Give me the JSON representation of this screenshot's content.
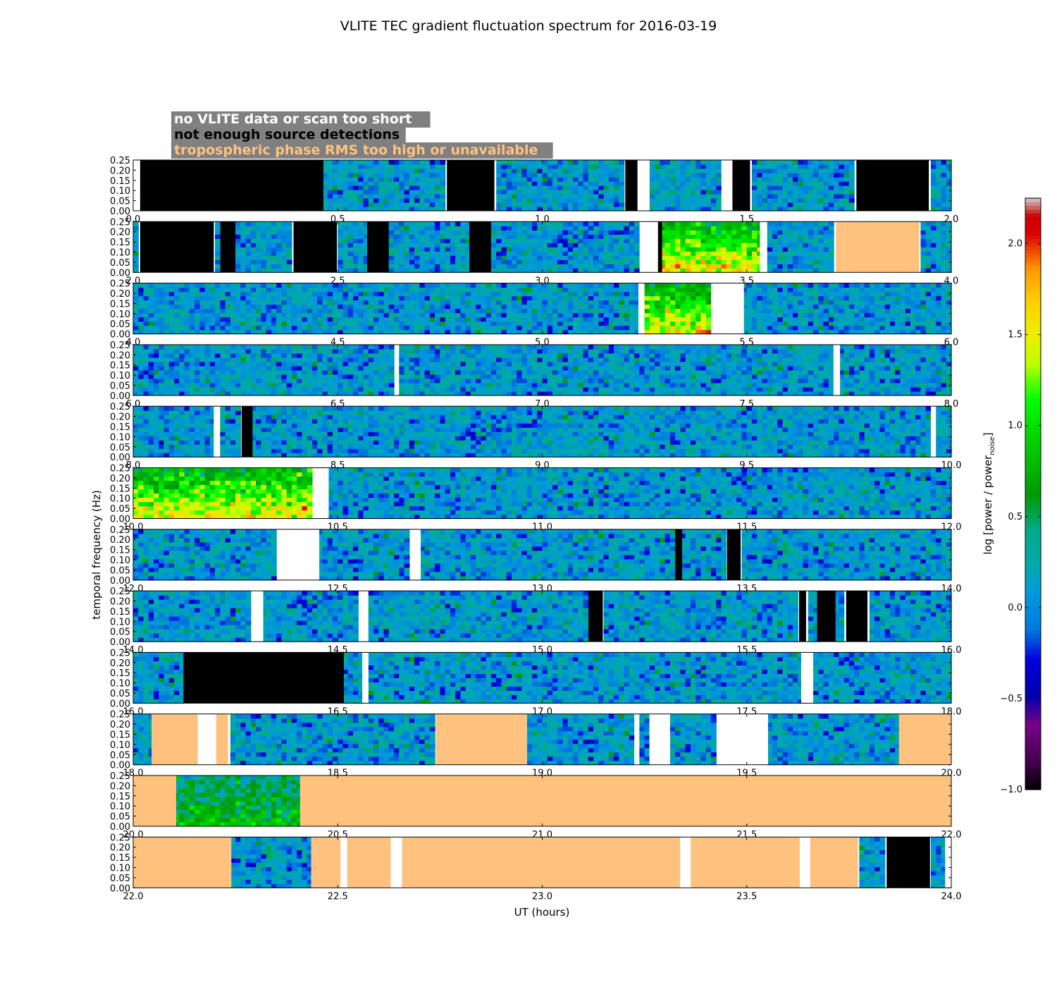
{
  "chart_data": {
    "type": "heatmap",
    "title": "VLITE TEC gradient fluctuation spectrum for 2016-03-19",
    "xlabel": "UT (hours)",
    "ylabel": "temporal frequency (Hz)",
    "colorbar_label": "log [power / power",
    "colorbar_label_sub": "noise",
    "colorbar_label_end": "]",
    "colorbar_range": [
      -1.0,
      2.25
    ],
    "colorbar_ticks": [
      "2.0",
      "1.5",
      "1.0",
      "0.5",
      "0.0",
      "−0.5",
      "−1.0"
    ],
    "colormap": "nipy_spectral",
    "y_ticks": [
      "0.00",
      "0.05",
      "0.10",
      "0.15",
      "0.20",
      "0.25"
    ],
    "ylim": [
      0,
      0.25
    ],
    "legend": {
      "placement": "top-left",
      "background": "#808080",
      "entries": [
        {
          "label": "no VLITE data or scan too short",
          "color": "#ffffff"
        },
        {
          "label": "not enough source detections",
          "color": "#000000"
        },
        {
          "label": "tropospheric phase RMS too high or unavailable",
          "color": "#ffc27e"
        }
      ]
    },
    "masks": {
      "W": "#ffffff",
      "B": "#000000",
      "O": "#ffc27e"
    },
    "panels": [
      {
        "xlim": [
          0,
          2
        ],
        "x_ticks": [
          "0.0",
          "0.5",
          "1.0",
          "1.5",
          "2.0"
        ],
        "segments": [
          [
            0.0,
            0.017,
            "W"
          ],
          [
            0.017,
            0.465,
            "B"
          ],
          [
            0.465,
            0.767,
            "D"
          ],
          [
            0.767,
            0.883,
            "B"
          ],
          [
            0.883,
            1.203,
            "D"
          ],
          [
            1.203,
            1.233,
            "B"
          ],
          [
            1.233,
            1.26,
            "W"
          ],
          [
            1.26,
            1.438,
            "D"
          ],
          [
            1.438,
            1.465,
            "W"
          ],
          [
            1.465,
            1.508,
            "B"
          ],
          [
            1.508,
            1.768,
            "D"
          ],
          [
            1.768,
            1.945,
            "B"
          ],
          [
            1.945,
            2.0,
            "D"
          ]
        ]
      },
      {
        "xlim": [
          2,
          4
        ],
        "x_ticks": [
          "2.0",
          "2.5",
          "3.0",
          "3.5",
          "4.0"
        ],
        "segments": [
          [
            2.0,
            2.017,
            "D"
          ],
          [
            2.017,
            2.197,
            "B"
          ],
          [
            2.197,
            2.213,
            "D"
          ],
          [
            2.213,
            2.25,
            "B"
          ],
          [
            2.25,
            2.392,
            "D"
          ],
          [
            2.392,
            2.498,
            "B"
          ],
          [
            2.498,
            2.572,
            "D"
          ],
          [
            2.572,
            2.625,
            "B"
          ],
          [
            2.625,
            2.822,
            "D"
          ],
          [
            2.822,
            2.875,
            "B"
          ],
          [
            2.875,
            3.238,
            "D"
          ],
          [
            3.238,
            3.283,
            "W"
          ],
          [
            3.283,
            3.293,
            "B"
          ],
          [
            3.293,
            3.532,
            "D",
            "hot"
          ],
          [
            3.532,
            3.548,
            "W"
          ],
          [
            3.548,
            3.718,
            "D"
          ],
          [
            3.718,
            3.922,
            "O"
          ],
          [
            3.922,
            4.0,
            "D"
          ]
        ]
      },
      {
        "xlim": [
          4,
          6
        ],
        "x_ticks": [
          "4.0",
          "4.5",
          "5.0",
          "5.5",
          "6.0"
        ],
        "segments": [
          [
            4.0,
            5.235,
            "D"
          ],
          [
            5.235,
            5.245,
            "W"
          ],
          [
            5.245,
            5.413,
            "D",
            "hot"
          ],
          [
            5.413,
            5.493,
            "W"
          ],
          [
            5.493,
            6.0,
            "D"
          ]
        ]
      },
      {
        "xlim": [
          6,
          8
        ],
        "x_ticks": [
          "6.0",
          "6.5",
          "7.0",
          "7.5",
          "8.0"
        ],
        "segments": [
          [
            6.0,
            6.643,
            "D"
          ],
          [
            6.643,
            6.648,
            "W"
          ],
          [
            6.648,
            7.712,
            "D"
          ],
          [
            7.712,
            7.728,
            "W"
          ],
          [
            7.728,
            8.0,
            "D"
          ]
        ]
      },
      {
        "xlim": [
          8,
          10
        ],
        "x_ticks": [
          "8.0",
          "8.5",
          "9.0",
          "9.5",
          "10.0"
        ],
        "segments": [
          [
            8.0,
            8.197,
            "D"
          ],
          [
            8.197,
            8.212,
            "W"
          ],
          [
            8.212,
            8.265,
            "D"
          ],
          [
            8.265,
            8.292,
            "B"
          ],
          [
            8.292,
            9.95,
            "D"
          ],
          [
            9.95,
            9.958,
            "W"
          ],
          [
            9.958,
            10.0,
            "D"
          ]
        ]
      },
      {
        "xlim": [
          10,
          12
        ],
        "x_ticks": [
          "10.0",
          "10.5",
          "11.0",
          "11.5",
          "12.0"
        ],
        "segments": [
          [
            10.0,
            10.443,
            "D",
            "hot"
          ],
          [
            10.443,
            10.478,
            "W"
          ],
          [
            10.478,
            12.0,
            "D"
          ]
        ]
      },
      {
        "xlim": [
          12,
          14
        ],
        "x_ticks": [
          "12.0",
          "12.5",
          "13.0",
          "13.5",
          "14.0"
        ],
        "segments": [
          [
            12.0,
            12.355,
            "D"
          ],
          [
            12.355,
            12.455,
            "W"
          ],
          [
            12.455,
            12.678,
            "D"
          ],
          [
            12.678,
            12.703,
            "W"
          ],
          [
            12.703,
            13.325,
            "D"
          ],
          [
            13.325,
            13.342,
            "B"
          ],
          [
            13.342,
            13.452,
            "D"
          ],
          [
            13.452,
            13.485,
            "B"
          ],
          [
            13.485,
            14.0,
            "D"
          ]
        ]
      },
      {
        "xlim": [
          14,
          16
        ],
        "x_ticks": [
          "14.0",
          "14.5",
          "15.0",
          "15.5",
          "16.0"
        ],
        "segments": [
          [
            14.0,
            14.293,
            "D"
          ],
          [
            14.293,
            14.318,
            "W"
          ],
          [
            14.318,
            14.555,
            "D"
          ],
          [
            14.555,
            14.572,
            "W"
          ],
          [
            14.572,
            15.113,
            "D"
          ],
          [
            15.113,
            15.148,
            "B"
          ],
          [
            15.148,
            15.628,
            "D"
          ],
          [
            15.628,
            15.645,
            "B"
          ],
          [
            15.645,
            15.672,
            "D"
          ],
          [
            15.672,
            15.717,
            "B"
          ],
          [
            15.717,
            15.743,
            "D"
          ],
          [
            15.743,
            15.795,
            "B"
          ],
          [
            15.795,
            16.0,
            "D"
          ]
        ]
      },
      {
        "xlim": [
          16,
          18
        ],
        "x_ticks": [
          "16.0",
          "16.5",
          "17.0",
          "17.5",
          "18.0"
        ],
        "segments": [
          [
            16.0,
            16.123,
            "D"
          ],
          [
            16.123,
            16.515,
            "B"
          ],
          [
            16.515,
            16.56,
            "D"
          ],
          [
            16.56,
            16.575,
            "W"
          ],
          [
            16.575,
            17.633,
            "D"
          ],
          [
            17.633,
            17.658,
            "W"
          ],
          [
            17.658,
            18.0,
            "D"
          ]
        ]
      },
      {
        "xlim": [
          18,
          20
        ],
        "x_ticks": [
          "18.0",
          "18.5",
          "19.0",
          "19.5",
          "20.0"
        ],
        "segments": [
          [
            18.0,
            18.045,
            "D"
          ],
          [
            18.045,
            18.158,
            "O"
          ],
          [
            18.158,
            18.203,
            "W"
          ],
          [
            18.203,
            18.232,
            "O"
          ],
          [
            18.232,
            18.74,
            "D"
          ],
          [
            18.74,
            18.963,
            "O"
          ],
          [
            18.963,
            19.225,
            "D"
          ],
          [
            19.225,
            19.232,
            "W"
          ],
          [
            19.232,
            19.262,
            "D"
          ],
          [
            19.262,
            19.312,
            "W"
          ],
          [
            19.312,
            19.43,
            "D"
          ],
          [
            19.43,
            19.552,
            "W"
          ],
          [
            19.552,
            19.872,
            "D"
          ],
          [
            19.872,
            20.0,
            "O"
          ]
        ]
      },
      {
        "xlim": [
          20,
          22
        ],
        "x_ticks": [
          "20.0",
          "20.5",
          "21.0",
          "21.5",
          "22.0"
        ],
        "segments": [
          [
            20.0,
            20.105,
            "O"
          ],
          [
            20.105,
            20.408,
            "D",
            "warm"
          ],
          [
            20.408,
            22.0,
            "O"
          ]
        ]
      },
      {
        "xlim": [
          22,
          24
        ],
        "x_ticks": [
          "22.0",
          "22.5",
          "23.0",
          "23.5",
          "24.0"
        ],
        "segments": [
          [
            22.0,
            22.24,
            "O"
          ],
          [
            22.24,
            22.435,
            "D"
          ],
          [
            22.435,
            22.507,
            "O"
          ],
          [
            22.507,
            22.523,
            "W"
          ],
          [
            22.523,
            22.63,
            "O"
          ],
          [
            22.63,
            22.657,
            "W"
          ],
          [
            22.657,
            23.337,
            "O"
          ],
          [
            23.337,
            23.363,
            "W"
          ],
          [
            23.363,
            23.63,
            "O"
          ],
          [
            23.63,
            23.655,
            "W"
          ],
          [
            23.655,
            23.772,
            "O"
          ],
          [
            23.772,
            23.842,
            "D"
          ],
          [
            23.842,
            23.948,
            "B"
          ],
          [
            23.948,
            23.985,
            "D"
          ],
          [
            23.985,
            24.0,
            "W"
          ]
        ]
      }
    ]
  }
}
